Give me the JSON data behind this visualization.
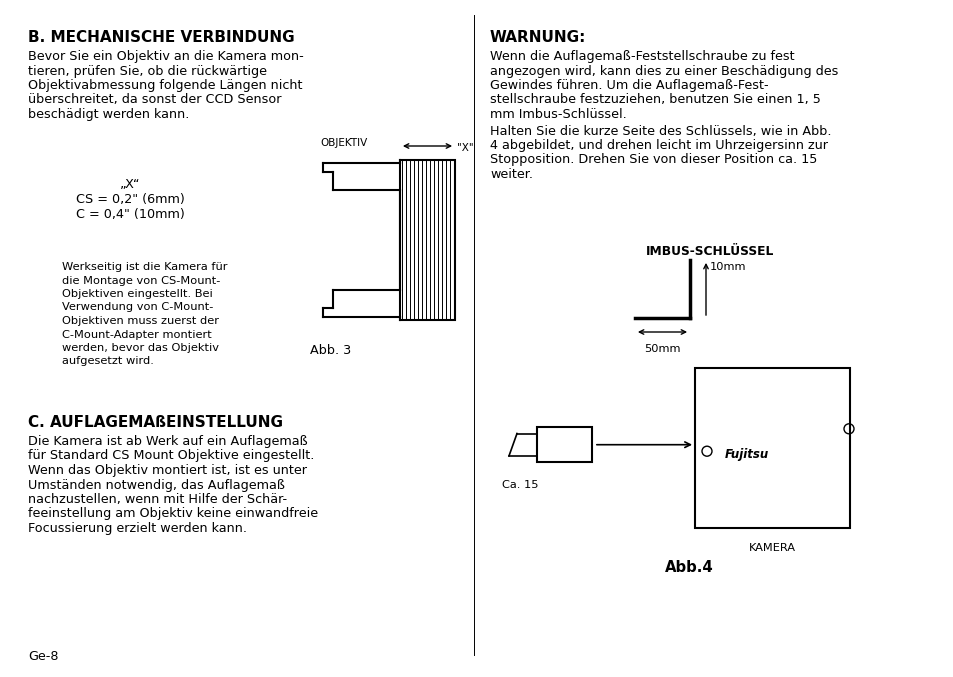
{
  "bg_color": "#ffffff",
  "text_color": "#000000",
  "title_b": "B. MECHANISCHE VERBINDUNG",
  "body_b": "Bevor Sie ein Objektiv an die Kamera mon-\ntieren, prüfen Sie, ob die rückwärtige\nObjektivabmessung folgende Längen nicht\nüberschreitet, da sonst der CCD Sensor\nbeschädigt werden kann.",
  "spec_line1": "„X“",
  "spec_line2": "CS = 0,2\" (6mm)",
  "spec_line3": "C = 0,4\" (10mm)",
  "side_text": "Werkseitig ist die Kamera für\ndie Montage von CS-Mount-\nObjektiven eingestellt. Bei\nVerwendung von C-Mount-\nObjektiven muss zuerst der\nC-Mount-Adapter montiert\nwerden, bevor das Objektiv\naufgesetzt wird.",
  "abb3_label": "Abb. 3",
  "title_c": "C. AUFLAGEMAßEINSTELLUNG",
  "body_c": "Die Kamera ist ab Werk auf ein Auflagemaß\nfür Standard CS Mount Objektive eingestellt.\nWenn das Objektiv montiert ist, ist es unter\nUmständen notwendig, das Auflagemaß\nnachzustellen, wenn mit Hilfe der Schär-\nfeeinstellung am Objektiv keine einwandfreie\nFocussierung erzielt werden kann.",
  "page_label": "Ge-8",
  "title_warn": "WARNUNG:",
  "body_warn1": "Wenn die Auflagemaß-Feststellschraube zu fest\nangezogen wird, kann dies zu einer Beschädigung des\nGewindes führen. Um die Auflagemaß-Fest-\nstellschraube festzuziehen, benutzen Sie einen 1, 5\nmm Imbus-Schlüssel.",
  "body_warn2": "Halten Sie die kurze Seite des Schlüssels, wie in Abb.\n4 abgebildet, und drehen leicht im Uhrzeigersinn zur\nStopposition. Drehen Sie von dieser Position ca. 15\nweiter.",
  "imbus_label": "IMBUS-SCHLÜSSEL",
  "dim_10mm": "10mm",
  "dim_50mm": "50mm",
  "ca15_label": "Ca. 15",
  "kamera_label": "KAMERA",
  "abb4_label": "Abb.4",
  "fujitsu_label": "Fujitsu"
}
